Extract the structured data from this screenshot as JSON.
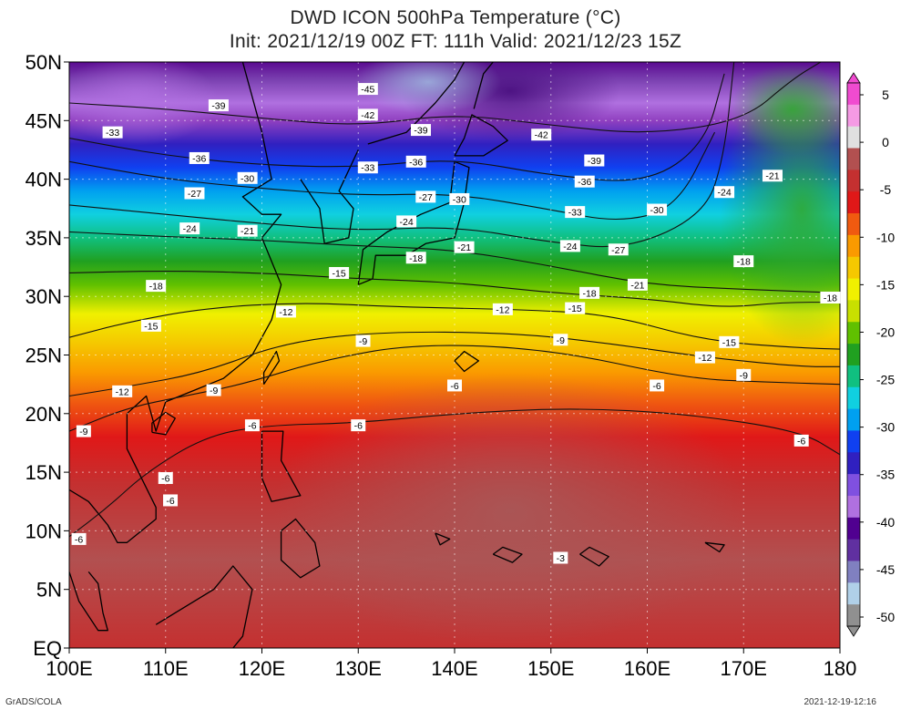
{
  "title_line1": "DWD ICON 500hPa Temperature (°C)",
  "title_line2": "Init: 2021/12/19 00Z  FT: 111h  Valid: 2021/12/23 15Z",
  "footer_left": "GrADS/COLA",
  "footer_right": "2021-12-19-12:16",
  "lat_labels": [
    "50N",
    "45N",
    "40N",
    "35N",
    "30N",
    "25N",
    "20N",
    "15N",
    "10N",
    "5N",
    "EQ"
  ],
  "lon_labels": [
    "100E",
    "110E",
    "120E",
    "130E",
    "140E",
    "150E",
    "160E",
    "170E",
    "180"
  ],
  "colorbar_labels": [
    "5",
    "0",
    "-5",
    "-10",
    "-15",
    "-20",
    "-25",
    "-30",
    "-35",
    "-40",
    "-45",
    "-50"
  ],
  "colorbar_colors": [
    "#f04bd0",
    "#f59ae4",
    "#e0e0e0",
    "#b25050",
    "#c43030",
    "#e01818",
    "#f05a10",
    "#fa9a00",
    "#f5c800",
    "#f0f000",
    "#c8e000",
    "#60c000",
    "#20a020",
    "#10c080",
    "#10d0e0",
    "#00a0f0",
    "#1040f0",
    "#3020c0",
    "#8050e0",
    "#b070e0",
    "#500090",
    "#6030a0",
    "#8080c0",
    "#b0d0e8",
    "#909090"
  ],
  "contour_labels": [
    {
      "text": "-45",
      "lon": 131,
      "lat": 47.7
    },
    {
      "text": "-42",
      "lon": 131,
      "lat": 45.5
    },
    {
      "text": "-39",
      "lon": 136.5,
      "lat": 44.2
    },
    {
      "text": "-42",
      "lon": 149,
      "lat": 43.8
    },
    {
      "text": "-39",
      "lon": 115.5,
      "lat": 46.3
    },
    {
      "text": "-33",
      "lon": 104.5,
      "lat": 44
    },
    {
      "text": "-36",
      "lon": 113.5,
      "lat": 41.8
    },
    {
      "text": "-36",
      "lon": 136,
      "lat": 41.5
    },
    {
      "text": "-33",
      "lon": 131,
      "lat": 41
    },
    {
      "text": "-39",
      "lon": 154.5,
      "lat": 41.6
    },
    {
      "text": "-36",
      "lon": 153.5,
      "lat": 39.8
    },
    {
      "text": "-30",
      "lon": 118.5,
      "lat": 40.1
    },
    {
      "text": "-27",
      "lon": 113,
      "lat": 38.8
    },
    {
      "text": "-27",
      "lon": 137,
      "lat": 38.5
    },
    {
      "text": "-30",
      "lon": 140.5,
      "lat": 38.3
    },
    {
      "text": "-33",
      "lon": 152.5,
      "lat": 37.2
    },
    {
      "text": "-30",
      "lon": 161,
      "lat": 37.4
    },
    {
      "text": "-24",
      "lon": 168,
      "lat": 38.9
    },
    {
      "text": "-21",
      "lon": 173,
      "lat": 40.3
    },
    {
      "text": "-24",
      "lon": 112.5,
      "lat": 35.8
    },
    {
      "text": "-21",
      "lon": 118.5,
      "lat": 35.6
    },
    {
      "text": "-24",
      "lon": 135,
      "lat": 36.4
    },
    {
      "text": "-21",
      "lon": 141,
      "lat": 34.2
    },
    {
      "text": "-24",
      "lon": 152,
      "lat": 34.3
    },
    {
      "text": "-27",
      "lon": 157,
      "lat": 34
    },
    {
      "text": "-18",
      "lon": 136,
      "lat": 33.3
    },
    {
      "text": "-15",
      "lon": 128,
      "lat": 32
    },
    {
      "text": "-18",
      "lon": 170,
      "lat": 33
    },
    {
      "text": "-18",
      "lon": 109,
      "lat": 30.9
    },
    {
      "text": "-21",
      "lon": 159,
      "lat": 31
    },
    {
      "text": "-18",
      "lon": 154,
      "lat": 30.3
    },
    {
      "text": "-18",
      "lon": 179,
      "lat": 29.9
    },
    {
      "text": "-12",
      "lon": 122.5,
      "lat": 28.7
    },
    {
      "text": "-12",
      "lon": 145,
      "lat": 28.9
    },
    {
      "text": "-15",
      "lon": 152.5,
      "lat": 29
    },
    {
      "text": "-15",
      "lon": 108.5,
      "lat": 27.5
    },
    {
      "text": "-9",
      "lon": 130.5,
      "lat": 26.2
    },
    {
      "text": "-9",
      "lon": 151,
      "lat": 26.3
    },
    {
      "text": "-15",
      "lon": 168.5,
      "lat": 26.1
    },
    {
      "text": "-12",
      "lon": 166,
      "lat": 24.8
    },
    {
      "text": "-9",
      "lon": 170,
      "lat": 23.3
    },
    {
      "text": "-6",
      "lon": 140,
      "lat": 22.4
    },
    {
      "text": "-6",
      "lon": 161,
      "lat": 22.4
    },
    {
      "text": "-12",
      "lon": 105.5,
      "lat": 21.9
    },
    {
      "text": "-9",
      "lon": 115,
      "lat": 22
    },
    {
      "text": "-6",
      "lon": 119,
      "lat": 19
    },
    {
      "text": "-6",
      "lon": 130,
      "lat": 19
    },
    {
      "text": "-6",
      "lon": 176,
      "lat": 17.7
    },
    {
      "text": "-9",
      "lon": 101.5,
      "lat": 18.5
    },
    {
      "text": "-6",
      "lon": 110,
      "lat": 14.5
    },
    {
      "text": "-6",
      "lon": 110.5,
      "lat": 12.6
    },
    {
      "text": "-6",
      "lon": 101,
      "lat": 9.3
    },
    {
      "text": "-3",
      "lon": 151,
      "lat": 7.7
    }
  ]
}
